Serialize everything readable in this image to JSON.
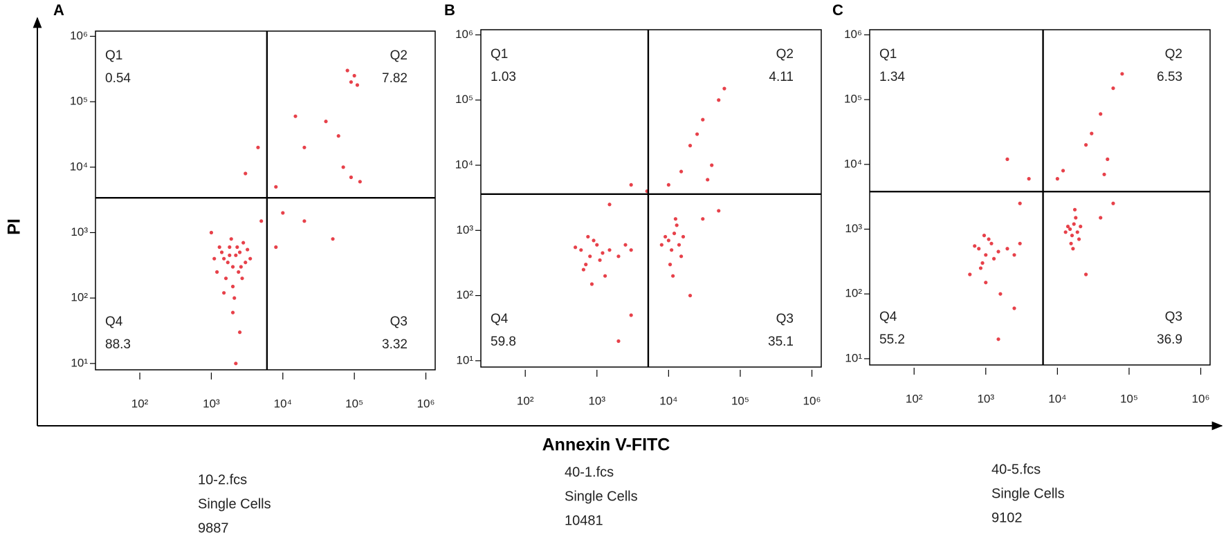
{
  "axis_labels": {
    "x": "Annexin V-FITC",
    "y": "PI"
  },
  "chart_data": [
    {
      "type": "scatter",
      "panel": "A",
      "color": "#e3202a",
      "log_scale": true,
      "xlim": [
        24,
        1350000
      ],
      "ylim": [
        8,
        1200000
      ],
      "xticks": [
        {
          "value": 100,
          "label": "10²"
        },
        {
          "value": 1000,
          "label": "10³"
        },
        {
          "value": 10000,
          "label": "10⁴"
        },
        {
          "value": 100000,
          "label": "10⁵"
        },
        {
          "value": 1000000,
          "label": "10⁶"
        }
      ],
      "yticks": [
        {
          "value": 10,
          "label": "10¹"
        },
        {
          "value": 100,
          "label": "10²"
        },
        {
          "value": 1000,
          "label": "10³"
        },
        {
          "value": 10000,
          "label": "10⁴"
        },
        {
          "value": 100000,
          "label": "10⁵"
        },
        {
          "value": 1000000,
          "label": "10⁶"
        }
      ],
      "gate_x": 6000,
      "gate_y": 3400,
      "quadrants": [
        {
          "name": "Q1",
          "value": 0.54
        },
        {
          "name": "Q2",
          "value": 7.82
        },
        {
          "name": "Q3",
          "value": 3.32
        },
        {
          "name": "Q4",
          "value": 88.3
        }
      ],
      "x": [
        1500,
        2000,
        2500,
        1800,
        3000,
        1200,
        2200,
        1600,
        2800,
        1400,
        2000,
        2400,
        1700,
        3200,
        1100,
        2600,
        1900,
        2100,
        1300,
        3500,
        2300,
        1500,
        2700,
        1800,
        2000,
        2500,
        2200,
        90000,
        100000,
        80000,
        110000,
        70000,
        90000,
        60000,
        40000,
        120000,
        20000,
        8000,
        15000,
        20000,
        50000,
        10000,
        8000,
        3000,
        4500,
        5000,
        1000
      ],
      "y": [
        400,
        300,
        500,
        600,
        350,
        250,
        450,
        200,
        700,
        500,
        150,
        250,
        350,
        550,
        400,
        300,
        800,
        100,
        600,
        400,
        600,
        120,
        200,
        450,
        60,
        30,
        10,
        200000,
        250000,
        300000,
        180000,
        10000,
        7000,
        30000,
        50000,
        6000,
        20000,
        5000,
        60000,
        1500,
        800,
        2000,
        600,
        8000,
        20000,
        1500,
        1000
      ],
      "file": "10-2.fcs",
      "population": "Single Cells",
      "count": 9887
    },
    {
      "type": "scatter",
      "panel": "B",
      "color": "#e3202a",
      "log_scale": true,
      "xlim": [
        24,
        1350000
      ],
      "ylim": [
        8,
        1200000
      ],
      "xticks": [
        {
          "value": 100,
          "label": "10²"
        },
        {
          "value": 1000,
          "label": "10³"
        },
        {
          "value": 10000,
          "label": "10⁴"
        },
        {
          "value": 100000,
          "label": "10⁵"
        },
        {
          "value": 1000000,
          "label": "10⁶"
        }
      ],
      "yticks": [
        {
          "value": 10,
          "label": "10¹"
        },
        {
          "value": 100,
          "label": "10²"
        },
        {
          "value": 1000,
          "label": "10³"
        },
        {
          "value": 10000,
          "label": "10⁴"
        },
        {
          "value": 100000,
          "label": "10⁵"
        },
        {
          "value": 1000000,
          "label": "10⁶"
        }
      ],
      "gate_x": 5200,
      "gate_y": 3600,
      "quadrants": [
        {
          "name": "Q1",
          "value": 1.03
        },
        {
          "name": "Q2",
          "value": 4.11
        },
        {
          "name": "Q3",
          "value": 35.1
        },
        {
          "name": "Q4",
          "value": 59.8
        }
      ],
      "x": [
        600,
        800,
        1000,
        700,
        900,
        1200,
        500,
        1500,
        2000,
        750,
        1100,
        650,
        3000,
        2500,
        850,
        1300,
        10000,
        12000,
        14000,
        11000,
        9000,
        13000,
        15000,
        10500,
        12500,
        8000,
        16000,
        11500,
        20000,
        30000,
        50000,
        15000,
        40000,
        25000,
        60000,
        10000,
        35000,
        30000,
        20000,
        50000,
        3000,
        2000,
        1500,
        3000,
        5000
      ],
      "y": [
        500,
        400,
        600,
        300,
        700,
        450,
        550,
        500,
        400,
        800,
        350,
        250,
        500,
        600,
        150,
        200,
        700,
        900,
        600,
        500,
        800,
        1200,
        400,
        300,
        1500,
        600,
        800,
        200,
        20000,
        50000,
        100000,
        8000,
        10000,
        30000,
        150000,
        5000,
        6000,
        1500,
        100,
        2000,
        50,
        20,
        2500,
        5000,
        4000
      ],
      "file": "40-1.fcs",
      "population": "Single Cells",
      "count": 10481
    },
    {
      "type": "scatter",
      "panel": "C",
      "color": "#e3202a",
      "log_scale": true,
      "xlim": [
        24,
        1350000
      ],
      "ylim": [
        8,
        1200000
      ],
      "xticks": [
        {
          "value": 100,
          "label": "10²"
        },
        {
          "value": 1000,
          "label": "10³"
        },
        {
          "value": 10000,
          "label": "10⁴"
        },
        {
          "value": 100000,
          "label": "10⁵"
        },
        {
          "value": 1000000,
          "label": "10⁶"
        }
      ],
      "yticks": [
        {
          "value": 10,
          "label": "10¹"
        },
        {
          "value": 100,
          "label": "10²"
        },
        {
          "value": 1000,
          "label": "10³"
        },
        {
          "value": 10000,
          "label": "10⁴"
        },
        {
          "value": 100000,
          "label": "10⁵"
        },
        {
          "value": 1000000,
          "label": "10⁶"
        }
      ],
      "gate_x": 6300,
      "gate_y": 3800,
      "quadrants": [
        {
          "name": "Q1",
          "value": 1.34
        },
        {
          "name": "Q2",
          "value": 6.53
        },
        {
          "name": "Q3",
          "value": 36.9
        },
        {
          "name": "Q4",
          "value": 55.2
        }
      ],
      "x": [
        800,
        1000,
        1200,
        900,
        1100,
        1500,
        700,
        2000,
        2500,
        950,
        1300,
        850,
        3000,
        600,
        1000,
        1600,
        15000,
        17000,
        19000,
        16000,
        14000,
        18000,
        20000,
        15500,
        17500,
        13000,
        21000,
        16500,
        25000,
        40000,
        60000,
        12000,
        50000,
        30000,
        80000,
        10000,
        45000,
        40000,
        25000,
        60000,
        2500,
        1500,
        3000,
        4000,
        2000
      ],
      "y": [
        500,
        400,
        600,
        300,
        700,
        450,
        550,
        500,
        400,
        800,
        350,
        250,
        600,
        200,
        150,
        100,
        1000,
        1200,
        900,
        800,
        1100,
        1500,
        700,
        600,
        2000,
        900,
        1100,
        500,
        20000,
        60000,
        150000,
        8000,
        12000,
        30000,
        250000,
        6000,
        7000,
        1500,
        200,
        2500,
        60,
        20,
        2500,
        6000,
        12000
      ],
      "file": "40-5.fcs",
      "population": "Single Cells",
      "count": 9102
    }
  ]
}
